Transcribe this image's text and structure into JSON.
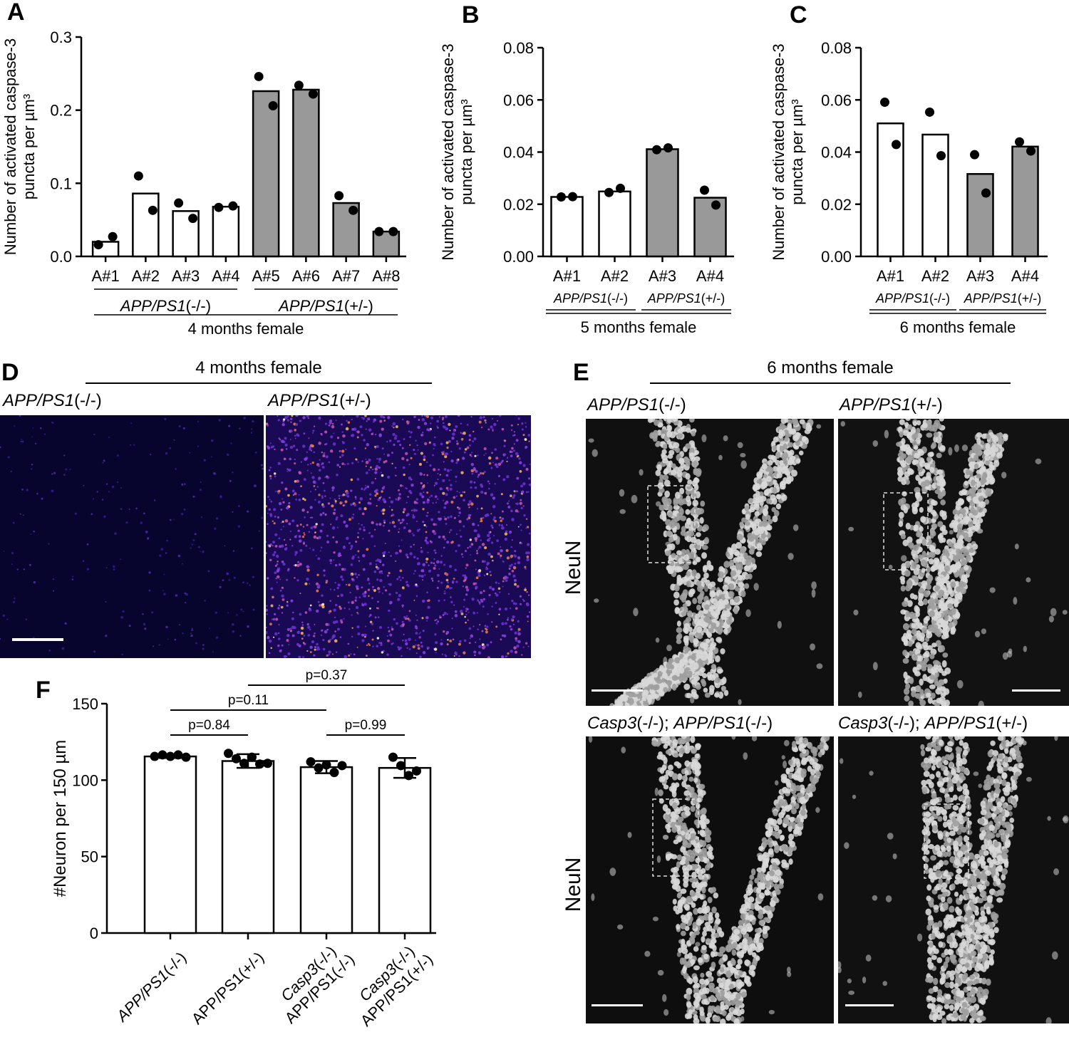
{
  "panel_labels": {
    "a": "A",
    "b": "B",
    "c": "C",
    "d": "D",
    "e": "E",
    "f": "F"
  },
  "chart_data": [
    {
      "id": "A",
      "type": "bar",
      "ylabel_line1": "Number of activated caspase-3",
      "ylabel_line2": "puncta per µm³",
      "ylim": [
        0,
        0.3
      ],
      "yticks": [
        0.0,
        0.1,
        0.2,
        0.3
      ],
      "ytick_labels": [
        "0.0",
        "0.1",
        "0.2",
        "0.3"
      ],
      "categories": [
        "A#1",
        "A#2",
        "A#3",
        "A#4",
        "A#5",
        "A#6",
        "A#7",
        "A#8"
      ],
      "values": [
        0.02,
        0.086,
        0.062,
        0.068,
        0.226,
        0.228,
        0.073,
        0.034
      ],
      "bar_colors": [
        "#ffffff",
        "#ffffff",
        "#ffffff",
        "#ffffff",
        "#999999",
        "#999999",
        "#999999",
        "#999999"
      ],
      "points": [
        [
          0.016,
          0.027
        ],
        [
          0.11,
          0.063
        ],
        [
          0.073,
          0.052
        ],
        [
          0.067,
          0.069
        ],
        [
          0.246,
          0.206
        ],
        [
          0.234,
          0.222
        ],
        [
          0.083,
          0.063
        ],
        [
          0.034,
          0.034
        ]
      ],
      "groups": [
        {
          "label_i": "APP/PS1",
          "label_n": "(-/-)",
          "span": [
            0,
            3
          ]
        },
        {
          "label_i": "APP/PS1",
          "label_n": "(+/-)",
          "span": [
            4,
            7
          ]
        }
      ],
      "footer": "4 months female"
    },
    {
      "id": "B",
      "type": "bar",
      "ylabel_line1": "Number of activated caspase-3",
      "ylabel_line2": "puncta per µm³",
      "ylim": [
        0,
        0.08
      ],
      "yticks": [
        0.0,
        0.02,
        0.04,
        0.06,
        0.08
      ],
      "ytick_labels": [
        "0.00",
        "0.02",
        "0.04",
        "0.06",
        "0.08"
      ],
      "categories": [
        "A#1",
        "A#2",
        "A#3",
        "A#4"
      ],
      "values": [
        0.0228,
        0.0249,
        0.0411,
        0.0225
      ],
      "bar_colors": [
        "#ffffff",
        "#ffffff",
        "#999999",
        "#999999"
      ],
      "points": [
        [
          0.0228,
          0.0229
        ],
        [
          0.0245,
          0.0261
        ],
        [
          0.0409,
          0.0416
        ],
        [
          0.0254,
          0.0197
        ]
      ],
      "groups": [
        {
          "label_i": "APP/PS1",
          "label_n": "(-/-)",
          "span": [
            0,
            1
          ]
        },
        {
          "label_i": "APP/PS1",
          "label_n": "(+/-)",
          "span": [
            2,
            3
          ]
        }
      ],
      "footer": "5 months female"
    },
    {
      "id": "C",
      "type": "bar",
      "ylabel_line1": "Number of activated caspase-3",
      "ylabel_line2": "puncta per µm³",
      "ylim": [
        0,
        0.08
      ],
      "yticks": [
        0.0,
        0.02,
        0.04,
        0.06,
        0.08
      ],
      "ytick_labels": [
        "0.00",
        "0.02",
        "0.04",
        "0.06",
        "0.08"
      ],
      "categories": [
        "A#1",
        "A#2",
        "A#3",
        "A#4"
      ],
      "values": [
        0.051,
        0.0467,
        0.0316,
        0.0421
      ],
      "bar_colors": [
        "#ffffff",
        "#ffffff",
        "#999999",
        "#999999"
      ],
      "points": [
        [
          0.0591,
          0.0429
        ],
        [
          0.0553,
          0.0386
        ],
        [
          0.039,
          0.0243
        ],
        [
          0.0439,
          0.0404
        ]
      ],
      "groups": [
        {
          "label_i": "APP/PS1",
          "label_n": "(-/-)",
          "span": [
            0,
            1
          ]
        },
        {
          "label_i": "APP/PS1",
          "label_n": "(+/-)",
          "span": [
            2,
            3
          ]
        }
      ],
      "footer": "6 months female"
    },
    {
      "id": "F",
      "type": "bar",
      "ylabel": "#Neuron per 150 µm",
      "ylim": [
        0,
        150
      ],
      "yticks": [
        0,
        50,
        100,
        150
      ],
      "ytick_labels": [
        "0",
        "50",
        "100",
        "150"
      ],
      "categories": [
        {
          "l1_i": "APP/PS1",
          "l1_n": "(-/-)",
          "l2_i": "",
          "l2_n": ""
        },
        {
          "l1_i": "",
          "l1_n": "APP/PS1(+/-)",
          "l2_i": "",
          "l2_n": ""
        },
        {
          "l1_i": "Casp3",
          "l1_n": "(-/-)",
          "l2_i": "",
          "l2_n": "APP/PS1(-/-)"
        },
        {
          "l1_i": "Casp3",
          "l1_n": "(-/-)",
          "l2_i": "",
          "l2_n": "APP/PS1(+/-)"
        }
      ],
      "values": [
        115.5,
        112.5,
        108.5,
        108.0
      ],
      "error": [
        1.0,
        4.5,
        4.0,
        6.5
      ],
      "points": [
        [
          115.5,
          116.5,
          115.5,
          116.5,
          115
        ],
        [
          117.5,
          114,
          111,
          115,
          110.5,
          111
        ],
        [
          112,
          108,
          110,
          105,
          109.5
        ],
        [
          115,
          109.5,
          103,
          106
        ]
      ],
      "comparisons": [
        {
          "label": "p=0.84",
          "from": 0,
          "to": 1,
          "level": 1
        },
        {
          "label": "p=0.99",
          "from": 2,
          "to": 3,
          "level": 1
        },
        {
          "label": "p=0.11",
          "from": 0,
          "to": 2,
          "level": 2
        },
        {
          "label": "p=0.37",
          "from": 1,
          "to": 3,
          "level": 3
        }
      ]
    }
  ],
  "panel_d": {
    "header": "4 months female",
    "left_i": "APP/PS1",
    "left_n": "(-/-)",
    "right_i": "APP/PS1",
    "right_n": "(+/-)"
  },
  "panel_e": {
    "header": "6 months female",
    "tl_i": "APP/PS1",
    "tl_n": "(-/-)",
    "tr_i": "APP/PS1",
    "tr_n": "(+/-)",
    "bl_i1": "Casp3",
    "bl_n1": "(-/-); ",
    "bl_i2": "APP/PS1",
    "bl_n2": "(-/-)",
    "br_i1": "Casp3",
    "br_n1": "(-/-); ",
    "br_i2": "APP/PS1",
    "br_n2": "(+/-)",
    "row_label": "NeuN"
  }
}
